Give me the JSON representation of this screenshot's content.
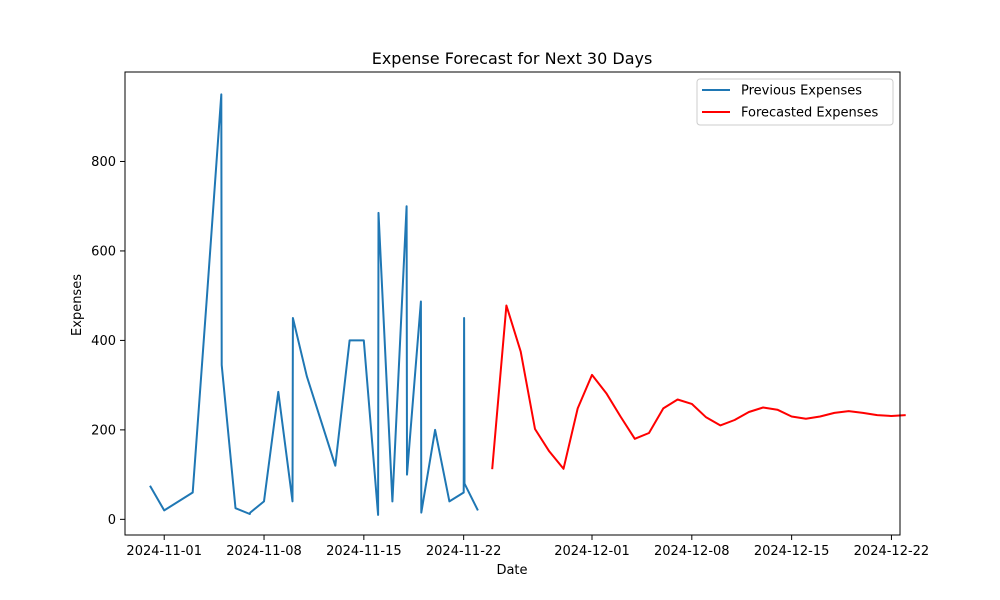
{
  "chart_data": {
    "type": "line",
    "title": "Expense Forecast for Next 30 Days",
    "xlabel": "Date",
    "ylabel": "Expenses",
    "xlim": [
      "2024-10-29",
      "2024-12-22"
    ],
    "ylim": [
      -35,
      1000
    ],
    "x_ticks": [
      "2024-11-01",
      "2024-11-08",
      "2024-11-15",
      "2024-11-22",
      "2024-12-01",
      "2024-12-08",
      "2024-12-15",
      "2024-12-22"
    ],
    "y_ticks": [
      0,
      200,
      400,
      600,
      800
    ],
    "grid": false,
    "legend_position": "top-right",
    "series": [
      {
        "name": "Previous Expenses",
        "color": "#1f77b4",
        "points": [
          {
            "x": "2024-10-31",
            "y": 75
          },
          {
            "x": "2024-11-01",
            "y": 20
          },
          {
            "x": "2024-11-03",
            "y": 60
          },
          {
            "x": "2024-11-04",
            "y": 500
          },
          {
            "x": "2024-11-05",
            "y": 950
          },
          {
            "x": "2024-11-05",
            "y": 345
          },
          {
            "x": "2024-11-06",
            "y": 25
          },
          {
            "x": "2024-11-07",
            "y": 12
          },
          {
            "x": "2024-11-07",
            "y": 15
          },
          {
            "x": "2024-11-08",
            "y": 40
          },
          {
            "x": "2024-11-09",
            "y": 285
          },
          {
            "x": "2024-11-10",
            "y": 40
          },
          {
            "x": "2024-11-10",
            "y": 450
          },
          {
            "x": "2024-11-11",
            "y": 320
          },
          {
            "x": "2024-11-13",
            "y": 120
          },
          {
            "x": "2024-11-14",
            "y": 400
          },
          {
            "x": "2024-11-15",
            "y": 400
          },
          {
            "x": "2024-11-16",
            "y": 10
          },
          {
            "x": "2024-11-16",
            "y": 685
          },
          {
            "x": "2024-11-17",
            "y": 40
          },
          {
            "x": "2024-11-18",
            "y": 700
          },
          {
            "x": "2024-11-18",
            "y": 100
          },
          {
            "x": "2024-11-19",
            "y": 487
          },
          {
            "x": "2024-11-19",
            "y": 15
          },
          {
            "x": "2024-11-20",
            "y": 200
          },
          {
            "x": "2024-11-21",
            "y": 40
          },
          {
            "x": "2024-11-22",
            "y": 60
          },
          {
            "x": "2024-11-22",
            "y": 450
          },
          {
            "x": "2024-11-22",
            "y": 80
          },
          {
            "x": "2024-11-23",
            "y": 20
          }
        ]
      },
      {
        "name": "Forecasted Expenses",
        "color": "#ff0000",
        "points": [
          {
            "x": "2024-11-24",
            "y": 112
          },
          {
            "x": "2024-11-25",
            "y": 478
          },
          {
            "x": "2024-11-26",
            "y": 375
          },
          {
            "x": "2024-11-27",
            "y": 202
          },
          {
            "x": "2024-11-28",
            "y": 152
          },
          {
            "x": "2024-11-29",
            "y": 113
          },
          {
            "x": "2024-11-30",
            "y": 248
          },
          {
            "x": "2024-12-01",
            "y": 323
          },
          {
            "x": "2024-12-02",
            "y": 282
          },
          {
            "x": "2024-12-03",
            "y": 230
          },
          {
            "x": "2024-12-04",
            "y": 180
          },
          {
            "x": "2024-12-05",
            "y": 193
          },
          {
            "x": "2024-12-06",
            "y": 248
          },
          {
            "x": "2024-12-07",
            "y": 268
          },
          {
            "x": "2024-12-08",
            "y": 258
          },
          {
            "x": "2024-12-09",
            "y": 228
          },
          {
            "x": "2024-12-10",
            "y": 210
          },
          {
            "x": "2024-12-11",
            "y": 222
          },
          {
            "x": "2024-12-12",
            "y": 240
          },
          {
            "x": "2024-12-13",
            "y": 250
          },
          {
            "x": "2024-12-14",
            "y": 245
          },
          {
            "x": "2024-12-15",
            "y": 230
          },
          {
            "x": "2024-12-16",
            "y": 225
          },
          {
            "x": "2024-12-17",
            "y": 230
          },
          {
            "x": "2024-12-18",
            "y": 238
          },
          {
            "x": "2024-12-19",
            "y": 242
          },
          {
            "x": "2024-12-20",
            "y": 238
          },
          {
            "x": "2024-12-21",
            "y": 233
          },
          {
            "x": "2024-12-22",
            "y": 231
          },
          {
            "x": "2024-12-23",
            "y": 233
          }
        ]
      }
    ]
  }
}
